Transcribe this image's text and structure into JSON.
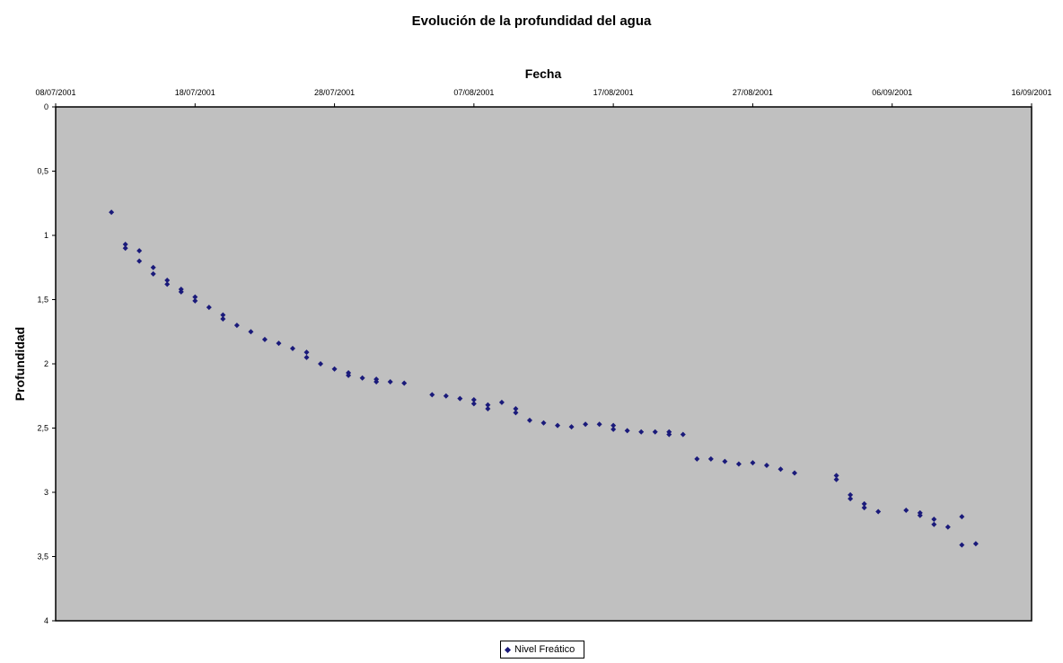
{
  "chart_data": {
    "type": "scatter",
    "title": "Evolución de la profundidad del agua",
    "xlabel": "Fecha",
    "ylabel": "Profundidad",
    "x_axis_position": "top",
    "y_axis_inverted": true,
    "xlim": [
      "2001-07-08",
      "2001-09-16"
    ],
    "ylim": [
      0,
      4
    ],
    "x_ticks": [
      "08/07/2001",
      "18/07/2001",
      "28/07/2001",
      "07/08/2001",
      "17/08/2001",
      "27/08/2001",
      "06/09/2001",
      "16/09/2001"
    ],
    "y_ticks": [
      "0",
      "0,5",
      "1",
      "1,5",
      "2",
      "2,5",
      "3",
      "3,5",
      "4"
    ],
    "plot_background": "#c0c0c0",
    "marker_color": "#1a1a7a",
    "grid": false,
    "legend_position": "bottom",
    "series": [
      {
        "name": "Nivel Freático",
        "points": [
          [
            "2001-07-12",
            0.82
          ],
          [
            "2001-07-13",
            1.07
          ],
          [
            "2001-07-13",
            1.1
          ],
          [
            "2001-07-14",
            1.12
          ],
          [
            "2001-07-14",
            1.2
          ],
          [
            "2001-07-15",
            1.25
          ],
          [
            "2001-07-15",
            1.3
          ],
          [
            "2001-07-16",
            1.35
          ],
          [
            "2001-07-16",
            1.38
          ],
          [
            "2001-07-17",
            1.42
          ],
          [
            "2001-07-17",
            1.44
          ],
          [
            "2001-07-18",
            1.48
          ],
          [
            "2001-07-18",
            1.51
          ],
          [
            "2001-07-19",
            1.56
          ],
          [
            "2001-07-20",
            1.62
          ],
          [
            "2001-07-20",
            1.65
          ],
          [
            "2001-07-21",
            1.7
          ],
          [
            "2001-07-22",
            1.75
          ],
          [
            "2001-07-23",
            1.81
          ],
          [
            "2001-07-24",
            1.84
          ],
          [
            "2001-07-25",
            1.88
          ],
          [
            "2001-07-26",
            1.91
          ],
          [
            "2001-07-26",
            1.95
          ],
          [
            "2001-07-27",
            2.0
          ],
          [
            "2001-07-28",
            2.04
          ],
          [
            "2001-07-29",
            2.07
          ],
          [
            "2001-07-29",
            2.09
          ],
          [
            "2001-07-30",
            2.11
          ],
          [
            "2001-07-31",
            2.12
          ],
          [
            "2001-07-31",
            2.14
          ],
          [
            "2001-08-01",
            2.14
          ],
          [
            "2001-08-02",
            2.15
          ],
          [
            "2001-08-04",
            2.24
          ],
          [
            "2001-08-05",
            2.25
          ],
          [
            "2001-08-06",
            2.27
          ],
          [
            "2001-08-07",
            2.28
          ],
          [
            "2001-08-07",
            2.31
          ],
          [
            "2001-08-08",
            2.32
          ],
          [
            "2001-08-08",
            2.35
          ],
          [
            "2001-08-09",
            2.3
          ],
          [
            "2001-08-10",
            2.35
          ],
          [
            "2001-08-10",
            2.38
          ],
          [
            "2001-08-11",
            2.44
          ],
          [
            "2001-08-12",
            2.46
          ],
          [
            "2001-08-13",
            2.48
          ],
          [
            "2001-08-14",
            2.49
          ],
          [
            "2001-08-15",
            2.47
          ],
          [
            "2001-08-16",
            2.47
          ],
          [
            "2001-08-17",
            2.48
          ],
          [
            "2001-08-17",
            2.51
          ],
          [
            "2001-08-18",
            2.52
          ],
          [
            "2001-08-19",
            2.53
          ],
          [
            "2001-08-20",
            2.53
          ],
          [
            "2001-08-21",
            2.53
          ],
          [
            "2001-08-21",
            2.55
          ],
          [
            "2001-08-22",
            2.55
          ],
          [
            "2001-08-23",
            2.74
          ],
          [
            "2001-08-24",
            2.74
          ],
          [
            "2001-08-25",
            2.76
          ],
          [
            "2001-08-26",
            2.78
          ],
          [
            "2001-08-27",
            2.77
          ],
          [
            "2001-08-28",
            2.79
          ],
          [
            "2001-08-29",
            2.82
          ],
          [
            "2001-08-30",
            2.85
          ],
          [
            "2001-09-02",
            2.87
          ],
          [
            "2001-09-02",
            2.9
          ],
          [
            "2001-09-03",
            3.02
          ],
          [
            "2001-09-03",
            3.05
          ],
          [
            "2001-09-04",
            3.09
          ],
          [
            "2001-09-04",
            3.12
          ],
          [
            "2001-09-05",
            3.15
          ],
          [
            "2001-09-07",
            3.14
          ],
          [
            "2001-09-08",
            3.16
          ],
          [
            "2001-09-08",
            3.18
          ],
          [
            "2001-09-09",
            3.21
          ],
          [
            "2001-09-09",
            3.25
          ],
          [
            "2001-09-10",
            3.27
          ],
          [
            "2001-09-11",
            3.19
          ],
          [
            "2001-09-11",
            3.41
          ],
          [
            "2001-09-12",
            3.4
          ]
        ]
      }
    ]
  }
}
